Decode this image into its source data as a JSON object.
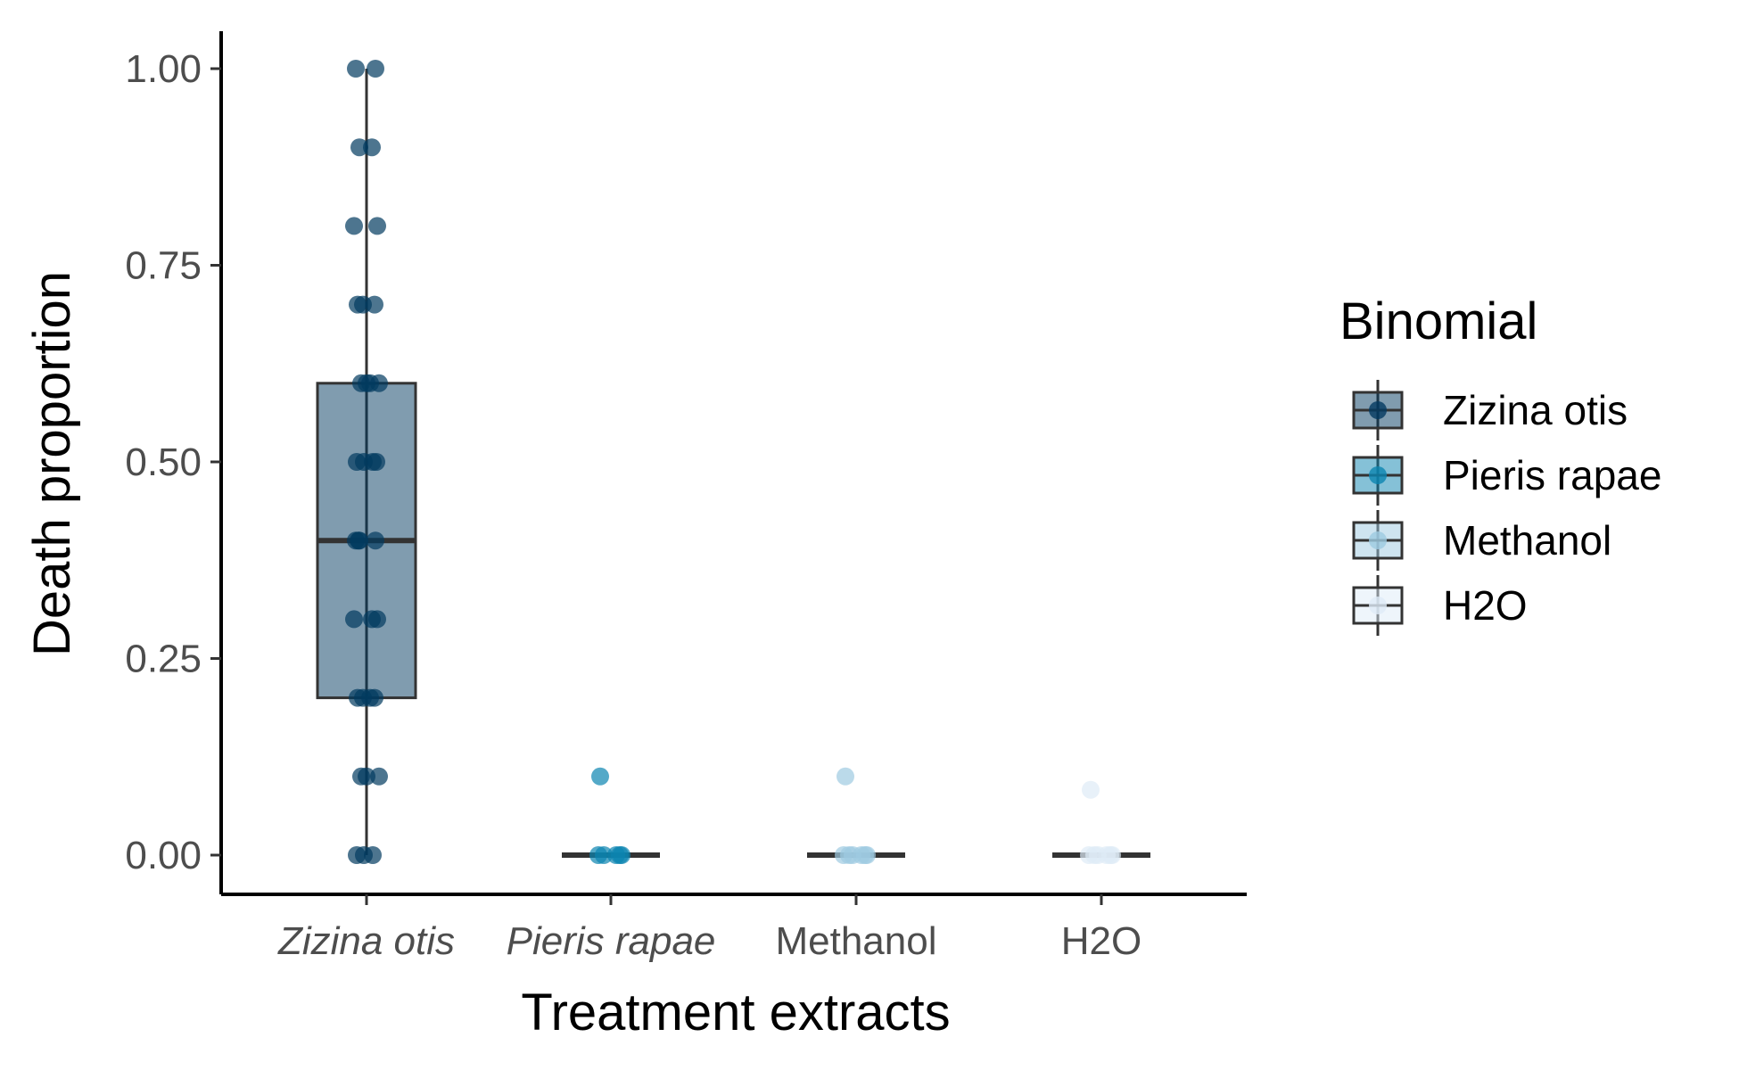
{
  "chart_data": {
    "type": "box",
    "xlabel": "Treatment extracts",
    "ylabel": "Death proportion",
    "ylim": [
      -0.05,
      1.05
    ],
    "yticks": [
      "0.00",
      "0.25",
      "0.50",
      "0.75",
      "1.00"
    ],
    "categories": [
      "Zizina otis",
      "Pieris rapae",
      "Methanol",
      "H2O"
    ],
    "italic_categories": [
      true,
      true,
      false,
      false
    ],
    "legend": {
      "title": "Binomial",
      "position": "right",
      "entries": [
        "Zizina otis",
        "Pieris rapae",
        "Methanol",
        "H2O"
      ]
    },
    "colors": [
      "#023a60",
      "#0b84b0",
      "#9ecae1",
      "#deebf7"
    ],
    "grid": false,
    "series": [
      {
        "name": "Zizina otis",
        "box": {
          "min": 0.0,
          "q1": 0.2,
          "median": 0.4,
          "q3": 0.6,
          "max": 1.0
        },
        "points": [
          1.0,
          1.0,
          0.9,
          0.9,
          0.8,
          0.8,
          0.7,
          0.7,
          0.7,
          0.6,
          0.6,
          0.6,
          0.6,
          0.5,
          0.5,
          0.5,
          0.5,
          0.4,
          0.4,
          0.4,
          0.4,
          0.3,
          0.3,
          0.3,
          0.2,
          0.2,
          0.2,
          0.2,
          0.1,
          0.1,
          0.1,
          0.0,
          0.0,
          0.0
        ]
      },
      {
        "name": "Pieris rapae",
        "box": {
          "min": 0.0,
          "q1": 0.0,
          "median": 0.0,
          "q3": 0.0,
          "max": 0.0
        },
        "points": [
          0.1,
          0.0,
          0.0,
          0.0,
          0.0,
          0.0
        ]
      },
      {
        "name": "Methanol",
        "box": {
          "min": 0.0,
          "q1": 0.0,
          "median": 0.0,
          "q3": 0.0,
          "max": 0.0
        },
        "points": [
          0.1,
          0.0,
          0.0,
          0.0,
          0.0,
          0.0,
          0.0
        ]
      },
      {
        "name": "H2O",
        "box": {
          "min": 0.0,
          "q1": 0.0,
          "median": 0.0,
          "q3": 0.0,
          "max": 0.0
        },
        "points": [
          0.083,
          0.0,
          0.0,
          0.0,
          0.0,
          0.0,
          0.0
        ]
      }
    ]
  }
}
